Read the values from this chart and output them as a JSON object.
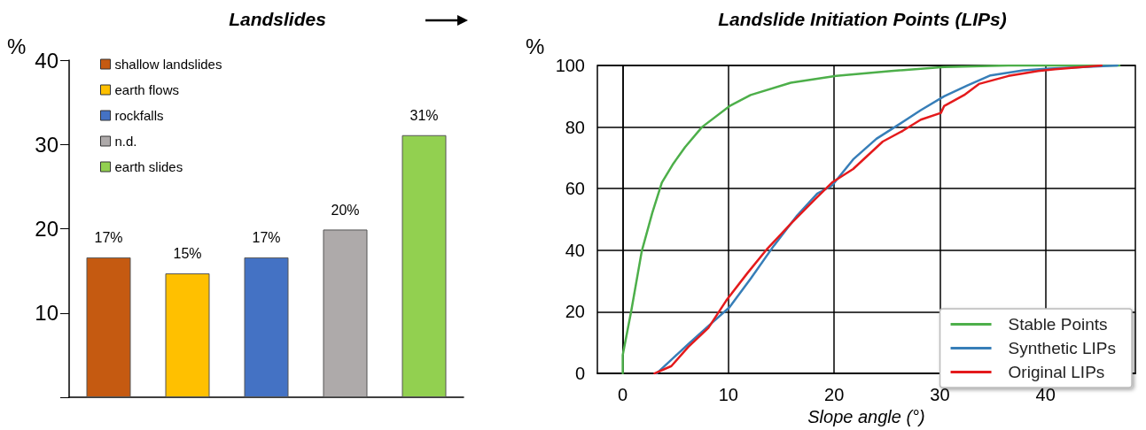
{
  "chart_data": [
    {
      "type": "bar",
      "title": "Landslides",
      "ylabel": "%",
      "categories": [
        null,
        null,
        null,
        null,
        null
      ],
      "series": [
        {
          "name": "shallow landslides",
          "color": "#c55a11",
          "values": [
            16.6,
            null,
            null,
            null,
            null
          ],
          "value_labels": [
            "17%",
            null,
            null,
            null,
            null
          ]
        },
        {
          "name": "earth flows",
          "color": "#ffc000",
          "values": [
            null,
            14.7,
            null,
            null,
            null
          ],
          "value_labels": [
            null,
            "15%",
            null,
            null,
            null
          ]
        },
        {
          "name": "rockfalls",
          "color": "#4472c4",
          "values": [
            null,
            null,
            16.6,
            null,
            null
          ],
          "value_labels": [
            null,
            null,
            "17%",
            null,
            null
          ]
        },
        {
          "name": "n.d.",
          "color": "#aeaaaa",
          "values": [
            null,
            null,
            null,
            19.9,
            null
          ],
          "value_labels": [
            null,
            null,
            null,
            "20%",
            null
          ]
        },
        {
          "name": "earth slides",
          "color": "#92d050",
          "values": [
            null,
            null,
            null,
            null,
            31.1
          ],
          "value_labels": [
            null,
            null,
            null,
            null,
            "31%"
          ]
        }
      ],
      "ylim": [
        0,
        40
      ],
      "yticks": [
        {
          "value": 0,
          "label": null
        },
        10,
        20,
        30,
        40
      ],
      "legend": "top left"
    },
    {
      "type": "line",
      "title": "Landslide Initiation Points (LIPs)",
      "xlabel": "Slope angle (°)",
      "ylabel": "%",
      "series": [
        {
          "name": "Stable Points",
          "color": "#4daf4a",
          "x": [
            0,
            0,
            0.8,
            1.8,
            2.8,
            3.7,
            4.8,
            5.9,
            7.5,
            10.1,
            12.1,
            15.9,
            20.2,
            25.4,
            30.4,
            36.5,
            47
          ],
          "values": [
            0,
            6,
            20.2,
            39.7,
            52.2,
            62,
            68.2,
            73.5,
            80,
            86.8,
            90.4,
            94.4,
            96.6,
            98.2,
            99.5,
            100,
            100
          ]
        },
        {
          "name": "Synthetic LIPs",
          "color": "#377eb8",
          "x": [
            3.2,
            4.8,
            6.2,
            7.9,
            10.1,
            12.1,
            14.3,
            16.5,
            18.4,
            19.8,
            21.8,
            24,
            26.2,
            28.2,
            30.4,
            32.6,
            34.8,
            37.9,
            40.4,
            46.8
          ],
          "values": [
            0,
            5.1,
            9.5,
            14.8,
            21.5,
            30.8,
            41.5,
            51.3,
            58.4,
            61,
            69.5,
            76.2,
            81,
            85.5,
            90,
            93.5,
            96.8,
            98.4,
            99,
            100
          ]
        },
        {
          "name": "Original LIPs",
          "color": "#e41a1c",
          "x": [
            3,
            4.6,
            6.2,
            8.1,
            9.8,
            11.8,
            13.7,
            15.9,
            18.2,
            19.8,
            21.8,
            24.6,
            26.5,
            28.2,
            30.1,
            30.4,
            32.3,
            33.7,
            36.5,
            39.3,
            40.9,
            45.3
          ],
          "values": [
            0,
            2.4,
            8.6,
            14.8,
            23.7,
            32.6,
            40.6,
            48.6,
            56.6,
            62,
            66.4,
            75.3,
            78.8,
            82.4,
            84.6,
            86.8,
            90.4,
            94,
            96.6,
            98.2,
            98.8,
            100
          ]
        }
      ],
      "xlim": [
        -2.4,
        48.5
      ],
      "xticks": [
        0,
        10,
        20,
        30,
        40
      ],
      "ylim": [
        0,
        100
      ],
      "yticks": [
        0,
        20,
        40,
        60,
        80,
        100
      ],
      "grid": true,
      "legend": "bottom right",
      "marker": "none",
      "line_style": "solid"
    }
  ]
}
